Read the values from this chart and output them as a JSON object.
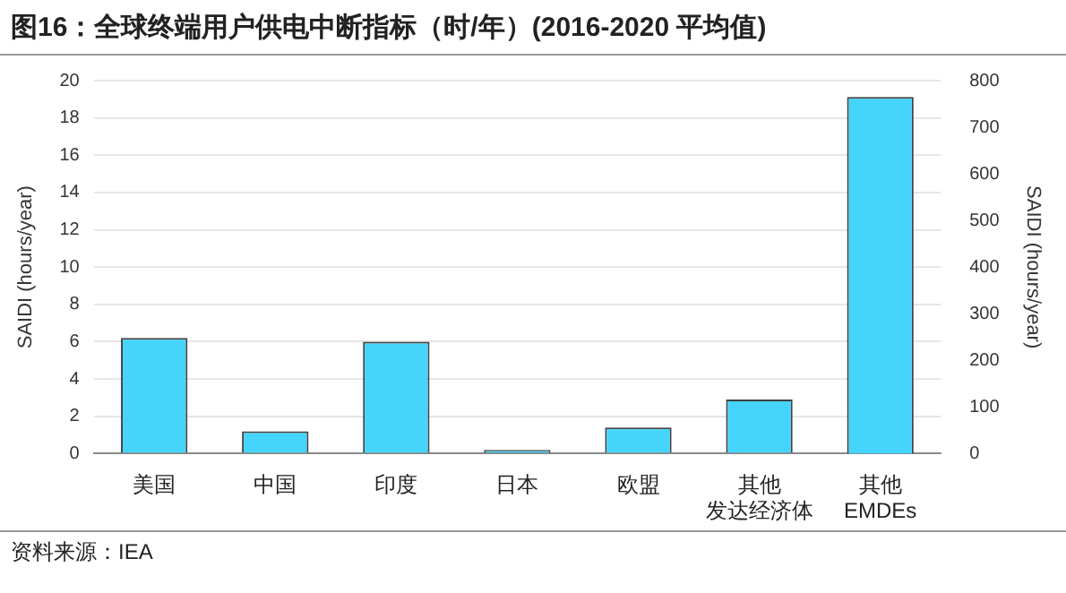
{
  "chart_data": {
    "type": "bar",
    "title": "图16：全球终端用户供电中断指标（时/年）(2016-2020 平均值)",
    "ylabel": "SAIDI (hours/year)",
    "y2label": "SAIDI (hours/year)",
    "categories": [
      "美国",
      "中国",
      "印度",
      "日本",
      "欧盟",
      "其他发达经济体",
      "其他EMDEs"
    ],
    "series": [
      {
        "color": "#45d4fb",
        "values": [
          6.2,
          1.2,
          6.0,
          0.2,
          1.4,
          2.9,
          null
        ]
      },
      {
        "color": "#45d4fb",
        "axis": "y2",
        "values": [
          null,
          null,
          null,
          null,
          null,
          null,
          765
        ]
      }
    ],
    "ylim": [
      0,
      20
    ],
    "yticks": [
      0,
      2,
      4,
      6,
      8,
      10,
      12,
      14,
      16,
      18,
      20
    ],
    "y2lim": [
      0,
      800
    ],
    "y2ticks": [
      0,
      100,
      200,
      300,
      400,
      500,
      600,
      700,
      800
    ],
    "grid": "y",
    "legend": false,
    "annotations": [
      "资料来源：IEA"
    ]
  }
}
